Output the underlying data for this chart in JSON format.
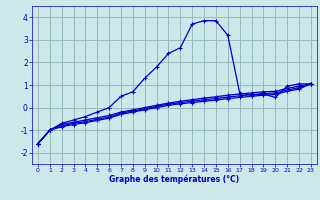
{
  "xlabel": "Graphe des températures (°C)",
  "bg_color": "#cce8e8",
  "grid_color": "#99bbbb",
  "line_color": "#0000cc",
  "xlim": [
    -0.5,
    23.5
  ],
  "ylim": [
    -2.5,
    4.5
  ],
  "yticks": [
    -2,
    -1,
    0,
    1,
    2,
    3,
    4
  ],
  "xticks": [
    0,
    1,
    2,
    3,
    4,
    5,
    6,
    7,
    8,
    9,
    10,
    11,
    12,
    13,
    14,
    15,
    16,
    17,
    18,
    19,
    20,
    21,
    22,
    23
  ],
  "line1_x": [
    0,
    1,
    2,
    3,
    4,
    5,
    6,
    7,
    8,
    9,
    10,
    11,
    12,
    13,
    14,
    15,
    16,
    17,
    18,
    19,
    20,
    21,
    22,
    23
  ],
  "line1_y": [
    -1.6,
    -1.0,
    -0.7,
    -0.55,
    -0.4,
    -0.2,
    0.0,
    0.5,
    0.7,
    1.3,
    1.8,
    2.4,
    2.65,
    3.7,
    3.85,
    3.85,
    3.2,
    0.65,
    0.55,
    0.6,
    0.45,
    0.95,
    1.05,
    1.05
  ],
  "line2_x": [
    0,
    1,
    2,
    3,
    4,
    5,
    6,
    7,
    8,
    9,
    10,
    11,
    12,
    13,
    14,
    15,
    16,
    17,
    18,
    19,
    20,
    21,
    22,
    23
  ],
  "line2_y": [
    -1.6,
    -1.0,
    -0.75,
    -0.65,
    -0.55,
    -0.45,
    -0.35,
    -0.2,
    -0.1,
    0.0,
    0.1,
    0.2,
    0.28,
    0.35,
    0.42,
    0.48,
    0.55,
    0.6,
    0.65,
    0.7,
    0.72,
    0.85,
    0.95,
    1.05
  ],
  "line3_x": [
    0,
    1,
    2,
    3,
    4,
    5,
    6,
    7,
    8,
    9,
    10,
    11,
    12,
    13,
    14,
    15,
    16,
    17,
    18,
    19,
    20,
    21,
    22,
    23
  ],
  "line3_y": [
    -1.6,
    -1.0,
    -0.8,
    -0.7,
    -0.62,
    -0.52,
    -0.42,
    -0.25,
    -0.15,
    -0.05,
    0.05,
    0.15,
    0.22,
    0.28,
    0.35,
    0.4,
    0.47,
    0.52,
    0.57,
    0.62,
    0.65,
    0.78,
    0.88,
    1.05
  ],
  "line4_x": [
    0,
    1,
    2,
    3,
    4,
    5,
    6,
    7,
    8,
    9,
    10,
    11,
    12,
    13,
    14,
    15,
    16,
    17,
    18,
    19,
    20,
    21,
    22,
    23
  ],
  "line4_y": [
    -1.6,
    -1.0,
    -0.85,
    -0.75,
    -0.67,
    -0.57,
    -0.47,
    -0.3,
    -0.2,
    -0.1,
    0.0,
    0.1,
    0.17,
    0.22,
    0.28,
    0.33,
    0.4,
    0.45,
    0.5,
    0.55,
    0.58,
    0.72,
    0.82,
    1.05
  ]
}
